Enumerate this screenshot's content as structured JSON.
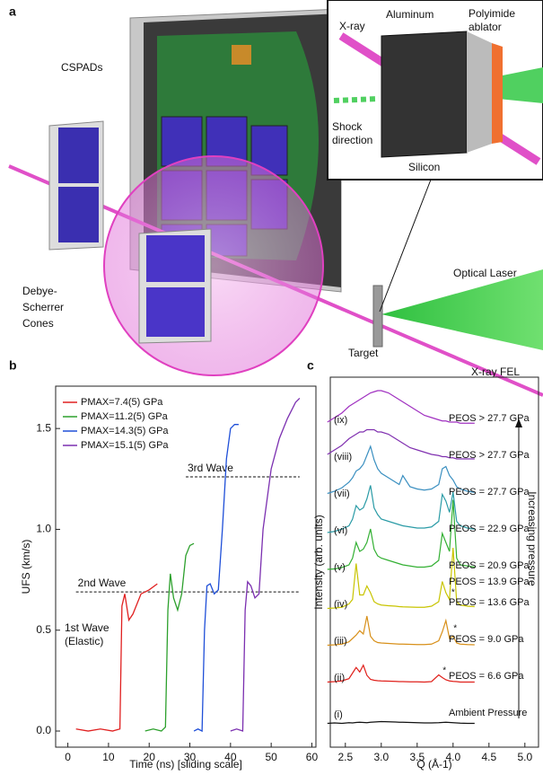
{
  "panel_a": {
    "label": "a",
    "cspads": "CSPADs",
    "xray": "X-ray",
    "aluminum": "Aluminum",
    "polyimide": [
      "Polyimide",
      "ablator"
    ],
    "shock": [
      "Shock",
      "direction"
    ],
    "silicon": "Silicon",
    "optical_laser": "Optical Laser",
    "cones": [
      "Debye-",
      "Scherrer",
      "Cones"
    ],
    "target": "Target",
    "xray_fel": "X-ray FEL"
  },
  "chart_data": [
    {
      "type": "line",
      "panel_label": "b",
      "xlabel": "Time (ns) [sliding scale]",
      "ylabel": "UFS (km/s)",
      "xlim": [
        -3,
        61
      ],
      "xticks": [
        0,
        10,
        20,
        30,
        40,
        50,
        60
      ],
      "ylim": [
        -0.08,
        1.71
      ],
      "yticks": [
        {
          "value": 0,
          "label": "0.0"
        },
        {
          "value": 0.5,
          "label": "0.5"
        },
        {
          "value": 1,
          "label": "1.0"
        },
        {
          "value": 1.5,
          "label": "1.5"
        }
      ],
      "series": [
        {
          "name": "PMAX=7.4(5) GPa",
          "color": "#e02020",
          "x": [
            2,
            5,
            8,
            11,
            12.8,
            13.3,
            14,
            15,
            16,
            17,
            18,
            20,
            22
          ],
          "values": [
            0.01,
            0.0,
            0.01,
            0.0,
            0.01,
            0.62,
            0.68,
            0.55,
            0.58,
            0.63,
            0.68,
            0.7,
            0.73
          ]
        },
        {
          "name": "PMAX=11.2(5) GPa",
          "color": "#2ca02c",
          "x": [
            19,
            21,
            23,
            24,
            24.6,
            25.2,
            26,
            27,
            28,
            29,
            30,
            31
          ],
          "values": [
            0.0,
            0.01,
            0.0,
            0.02,
            0.6,
            0.78,
            0.66,
            0.6,
            0.68,
            0.87,
            0.92,
            0.93
          ]
        },
        {
          "name": "PMAX=14.3(5) GPa",
          "color": "#1f4fd8",
          "x": [
            31,
            32,
            33,
            33.6,
            34.2,
            35,
            36,
            37,
            38,
            39,
            40,
            41,
            42
          ],
          "values": [
            0.0,
            0.01,
            0.0,
            0.5,
            0.72,
            0.73,
            0.68,
            0.7,
            1.0,
            1.35,
            1.5,
            1.52,
            1.52
          ]
        },
        {
          "name": "PMAX=15.1(5) GPa",
          "color": "#7b2fb0",
          "x": [
            40,
            41.5,
            43,
            43.6,
            44.2,
            45,
            46,
            47,
            48,
            50,
            52,
            54,
            56,
            57
          ],
          "values": [
            0.0,
            0.01,
            0.0,
            0.6,
            0.74,
            0.72,
            0.66,
            0.68,
            1.0,
            1.3,
            1.45,
            1.55,
            1.63,
            1.65
          ]
        }
      ],
      "reference_lines": [
        {
          "value": 0.69,
          "x": [
            2,
            57
          ],
          "label": "2nd Wave"
        },
        {
          "value": 1.26,
          "x": [
            29,
            57
          ],
          "label": "3rd Wave"
        }
      ],
      "annotation": [
        "1st Wave",
        "(Elastic)"
      ]
    },
    {
      "type": "offset_line",
      "panel_label": "c",
      "xlabel": "Q (Å-1)",
      "ylabel": "Intensity (arb. units)",
      "arrow_label": "Increasing pressure",
      "star_marker": "*",
      "xlim": [
        2.29,
        5.19
      ],
      "xticks": [
        2.5,
        {
          "value": 3,
          "label": "3.0"
        },
        3.5,
        {
          "value": 4,
          "label": "4.0"
        },
        4.5,
        {
          "value": 5,
          "label": "5.0"
        }
      ],
      "x": [
        2.25,
        2.35,
        2.45,
        2.55,
        2.6,
        2.65,
        2.7,
        2.75,
        2.8,
        2.85,
        2.9,
        2.95,
        3.0,
        3.1,
        3.2,
        3.25,
        3.3,
        3.4,
        3.5,
        3.6,
        3.7,
        3.8,
        3.85,
        3.9,
        3.95,
        4.0,
        4.05,
        4.1,
        4.2,
        4.3
      ],
      "series": [
        {
          "name": "(i)",
          "color": "#111111",
          "labels": [
            "Ambient Pressure"
          ],
          "values": [
            0.1,
            0.12,
            0.1,
            0.13,
            0.12,
            0.14,
            0.15,
            0.14,
            0.13,
            0.15,
            0.16,
            0.17,
            0.18,
            0.17,
            0.16,
            0.15,
            0.15,
            0.14,
            0.13,
            0.12,
            0.12,
            0.13,
            0.14,
            0.15,
            0.14,
            0.13,
            0.12,
            0.11,
            0.1,
            0.1
          ]
        },
        {
          "name": "(ii)",
          "color": "#e0201b",
          "labels": [
            "PEOS = 6.6 GPa"
          ],
          "values": [
            0.3,
            0.32,
            0.35,
            0.45,
            0.7,
            0.95,
            0.75,
            1.05,
            0.6,
            0.42,
            0.38,
            0.36,
            0.35,
            0.34,
            0.33,
            0.32,
            0.32,
            0.31,
            0.31,
            0.3,
            0.32,
            0.62,
            0.5,
            0.4,
            0.35,
            0.33,
            0.32,
            0.3,
            0.3,
            0.3
          ]
        },
        {
          "name": "(iii)",
          "color": "#d8901a",
          "labels": [
            "PEOS = 9.0 GPa"
          ],
          "values": [
            0.3,
            0.32,
            0.35,
            0.45,
            0.6,
            0.75,
            0.95,
            0.8,
            1.6,
            0.7,
            0.5,
            0.42,
            0.4,
            0.38,
            0.36,
            0.35,
            0.35,
            0.34,
            0.33,
            0.33,
            0.35,
            0.5,
            0.9,
            1.4,
            0.6,
            0.7,
            0.4,
            0.35,
            0.33,
            0.32
          ]
        },
        {
          "name": "(iv)",
          "color": "#c8c400",
          "labels": [
            "PEOS = 13.6 GPa"
          ],
          "values": [
            0.3,
            0.32,
            0.35,
            0.5,
            0.7,
            2.3,
            0.9,
            0.9,
            1.3,
            1.0,
            0.6,
            0.5,
            0.45,
            0.42,
            0.4,
            0.38,
            0.37,
            0.36,
            0.35,
            0.35,
            0.4,
            0.6,
            1.5,
            1.0,
            0.7,
            3.0,
            0.6,
            0.45,
            0.4,
            0.38
          ]
        },
        {
          "name": "(v)",
          "color": "#33b033",
          "labels": [
            "PEOS = 20.9 GPa",
            "PEOS = 13.9 GPa"
          ],
          "values": [
            0.4,
            0.42,
            0.48,
            0.6,
            0.9,
            1.6,
            1.2,
            1.3,
            1.6,
            2.2,
            1.3,
            1.0,
            0.9,
            0.8,
            0.7,
            0.65,
            0.6,
            0.55,
            0.5,
            0.5,
            0.55,
            0.8,
            2.0,
            1.6,
            1.2,
            3.5,
            0.9,
            0.6,
            0.55,
            0.5
          ]
        },
        {
          "name": "(vi)",
          "color": "#2a9ba6",
          "labels": [
            "PEOS = 22.9 GPa"
          ],
          "values": [
            0.4,
            0.45,
            0.55,
            0.7,
            1.0,
            1.6,
            1.4,
            1.5,
            1.9,
            2.5,
            1.5,
            1.2,
            1.0,
            0.9,
            0.8,
            0.75,
            0.7,
            0.65,
            0.6,
            0.6,
            0.65,
            0.9,
            2.1,
            1.8,
            1.3,
            2.2,
            0.9,
            0.7,
            0.6,
            0.55
          ]
        },
        {
          "name": "(vii)",
          "color": "#3a8fc0",
          "labels": [
            "PEOS = 27.7 GPa"
          ],
          "values": [
            0.5,
            0.6,
            0.75,
            1.0,
            1.2,
            1.5,
            1.6,
            1.8,
            2.2,
            2.6,
            2.0,
            1.6,
            1.4,
            1.2,
            1.0,
            0.9,
            1.3,
            0.8,
            0.7,
            0.65,
            0.7,
            0.9,
            1.6,
            1.7,
            1.3,
            1.1,
            0.8,
            0.7,
            0.6,
            0.55
          ]
        },
        {
          "name": "(viii)",
          "color": "#8030b0",
          "labels": [
            "PEOS > 27.7 GPa"
          ],
          "values": [
            0.6,
            0.8,
            1.0,
            1.3,
            1.4,
            1.5,
            1.6,
            1.6,
            1.7,
            1.7,
            1.7,
            1.6,
            1.6,
            1.5,
            1.3,
            1.2,
            1.1,
            0.9,
            0.8,
            0.7,
            0.6,
            0.55,
            0.5,
            0.5,
            0.45,
            0.45,
            0.4,
            0.4,
            0.4,
            0.4
          ]
        },
        {
          "name": "(ix)",
          "color": "#a030c0",
          "labels": [
            "PEOS > 27.7 GPa"
          ],
          "values": [
            0.4,
            0.6,
            0.8,
            1.1,
            1.2,
            1.3,
            1.4,
            1.5,
            1.6,
            1.7,
            1.75,
            1.8,
            1.8,
            1.7,
            1.5,
            1.4,
            1.3,
            1.1,
            0.9,
            0.7,
            0.6,
            0.5,
            0.45,
            0.45,
            0.4,
            0.4,
            0.4,
            0.35,
            0.35,
            0.35
          ]
        }
      ]
    }
  ]
}
